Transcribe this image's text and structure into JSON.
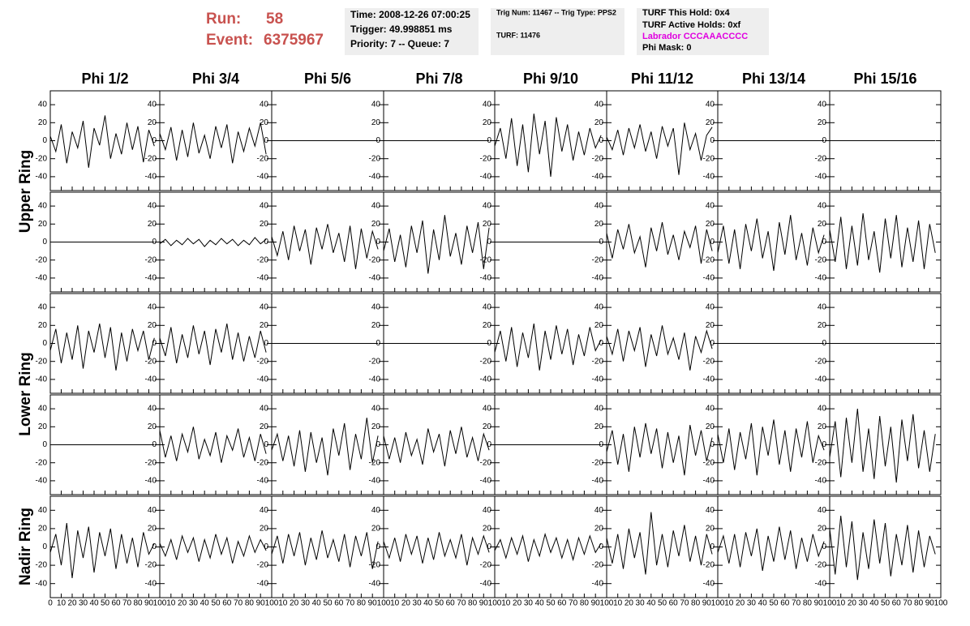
{
  "header": {
    "run_label": "Run:",
    "run": "58",
    "event_label": "Event:",
    "event": "6375967"
  },
  "info": [
    [
      "Time: 2008-12-26 07:00:25",
      "Trigger: 49.998851 ms",
      "Priority: 7 -- Queue: 7"
    ],
    [
      "Trig Num: 11467 -- Trig Type: PPS2",
      "TURF: 11476"
    ],
    [
      "TURF This Hold: 0x4",
      "TURF Active Holds: 0xf",
      "Labrador CCCAAACCCC",
      "Phi Mask: 0"
    ]
  ],
  "columns": [
    "Phi 1/2",
    "Phi 3/4",
    "Phi 5/6",
    "Phi 7/8",
    "Phi 9/10",
    "Phi 11/12",
    "Phi 13/14",
    "Phi 15/16"
  ],
  "rings": [
    "Upper Ring",
    "Lower Ring",
    "Nadir Ring"
  ],
  "plot": {
    "ylim": [
      -50,
      50
    ],
    "yticks": [
      -40,
      -20,
      0,
      20,
      40
    ],
    "xlim": [
      0,
      100
    ],
    "xticks": [
      0,
      10,
      20,
      30,
      40,
      50,
      60,
      70,
      80,
      90,
      100
    ],
    "x": [
      0,
      5,
      10,
      15,
      20,
      25,
      30,
      35,
      40,
      45,
      50,
      55,
      60,
      65,
      70,
      75,
      80,
      85,
      90,
      95
    ]
  },
  "panels": [
    [
      [
        5,
        -12,
        18,
        -25,
        10,
        -8,
        22,
        -30,
        14,
        -5,
        28,
        -20,
        8,
        -15,
        20,
        -10,
        16,
        -24,
        12,
        -6
      ],
      [
        8,
        -10,
        15,
        -22,
        12,
        -18,
        20,
        -14,
        6,
        -20,
        16,
        -8,
        18,
        -25,
        10,
        -12,
        14,
        -6,
        20,
        -15
      ],
      [
        0,
        0,
        0,
        0,
        0,
        0,
        0,
        0,
        0,
        0,
        0,
        0,
        0,
        0,
        0,
        0,
        0,
        0,
        0,
        0
      ],
      [
        0,
        0,
        0,
        0,
        0,
        0,
        0,
        0,
        0,
        0,
        0,
        0,
        0,
        0,
        0,
        0,
        0,
        0,
        0,
        0
      ],
      [
        -6,
        14,
        -20,
        25,
        -28,
        18,
        -35,
        30,
        -15,
        22,
        -40,
        26,
        -12,
        18,
        -22,
        10,
        -16,
        14,
        -8,
        6
      ],
      [
        4,
        -10,
        12,
        -16,
        14,
        -8,
        18,
        -12,
        10,
        -20,
        16,
        -6,
        14,
        -38,
        20,
        -10,
        8,
        -22,
        6,
        15
      ],
      [
        0,
        0,
        0,
        0,
        0,
        0,
        0,
        0,
        0,
        0,
        0,
        0,
        0,
        0,
        0,
        0,
        0,
        0,
        0,
        0
      ],
      [
        0,
        0,
        0,
        0,
        0,
        0,
        0,
        0,
        0,
        0,
        0,
        0,
        0,
        0,
        0,
        0,
        0,
        0,
        0,
        0
      ]
    ],
    [
      [
        0,
        0,
        0,
        0,
        0,
        0,
        0,
        0,
        0,
        0,
        0,
        0,
        0,
        0,
        0,
        0,
        0,
        0,
        0,
        0
      ],
      [
        -2,
        3,
        -4,
        2,
        -3,
        4,
        -2,
        3,
        -5,
        2,
        -3,
        4,
        -2,
        3,
        -4,
        2,
        -3,
        5,
        -2,
        3
      ],
      [
        6,
        -15,
        12,
        -20,
        18,
        -10,
        14,
        -25,
        16,
        -8,
        20,
        -12,
        10,
        -22,
        18,
        -30,
        15,
        -18,
        12,
        -8
      ],
      [
        -10,
        15,
        -22,
        8,
        -28,
        18,
        -12,
        24,
        -35,
        14,
        -20,
        30,
        -16,
        10,
        -25,
        18,
        -12,
        22,
        -30,
        16
      ],
      [
        0,
        0,
        0,
        0,
        0,
        0,
        0,
        0,
        0,
        0,
        0,
        0,
        0,
        0,
        0,
        0,
        0,
        0,
        0,
        0
      ],
      [
        10,
        -18,
        14,
        -8,
        20,
        -12,
        6,
        -28,
        16,
        -10,
        22,
        -14,
        8,
        -20,
        12,
        -6,
        18,
        -24,
        14,
        -10
      ],
      [
        -12,
        18,
        -24,
        14,
        -30,
        20,
        -10,
        26,
        -18,
        12,
        -32,
        22,
        -14,
        30,
        -20,
        10,
        -26,
        16,
        -12,
        8
      ],
      [
        14,
        -22,
        28,
        -30,
        18,
        -26,
        32,
        -20,
        12,
        -34,
        26,
        -18,
        30,
        -28,
        16,
        -22,
        24,
        -30,
        20,
        -12
      ]
    ],
    [
      [
        -8,
        16,
        -22,
        12,
        -18,
        20,
        -28,
        14,
        -10,
        22,
        -16,
        18,
        -30,
        12,
        -20,
        16,
        -8,
        14,
        -18,
        6
      ],
      [
        6,
        -14,
        18,
        -22,
        10,
        -16,
        20,
        -12,
        14,
        -24,
        16,
        -10,
        22,
        -18,
        12,
        -20,
        8,
        -16,
        14,
        -10
      ],
      [
        0,
        0,
        0,
        0,
        0,
        0,
        0,
        0,
        0,
        0,
        0,
        0,
        0,
        0,
        0,
        0,
        0,
        0,
        0,
        0
      ],
      [
        0,
        0,
        0,
        0,
        0,
        0,
        0,
        0,
        0,
        0,
        0,
        0,
        0,
        0,
        0,
        0,
        0,
        0,
        0,
        0
      ],
      [
        -10,
        14,
        -20,
        18,
        -26,
        12,
        -16,
        22,
        -30,
        14,
        -18,
        20,
        -12,
        16,
        -24,
        10,
        -14,
        18,
        -8,
        4
      ],
      [
        8,
        -12,
        16,
        -20,
        14,
        -8,
        18,
        -26,
        10,
        -14,
        20,
        -12,
        6,
        -18,
        12,
        -30,
        8,
        -10,
        14,
        -6
      ],
      [
        0,
        0,
        0,
        0,
        0,
        0,
        0,
        0,
        0,
        0,
        0,
        0,
        0,
        0,
        0,
        0,
        0,
        0,
        0,
        0
      ],
      [
        0,
        0,
        0,
        0,
        0,
        0,
        0,
        0,
        0,
        0,
        0,
        0,
        0,
        0,
        0,
        0,
        0,
        0,
        0,
        0
      ]
    ],
    [
      [
        0,
        0,
        0,
        0,
        0,
        0,
        0,
        0,
        0,
        0,
        0,
        0,
        0,
        0,
        0,
        0,
        0,
        0,
        0,
        0
      ],
      [
        16,
        -14,
        10,
        -18,
        12,
        -8,
        20,
        -16,
        6,
        -12,
        14,
        -20,
        10,
        -6,
        18,
        -14,
        8,
        -18,
        12,
        -10
      ],
      [
        -6,
        12,
        -18,
        10,
        -24,
        16,
        -30,
        14,
        -20,
        8,
        -34,
        18,
        -12,
        24,
        -28,
        12,
        -16,
        30,
        -20,
        10
      ],
      [
        10,
        -16,
        8,
        -20,
        14,
        -12,
        6,
        -22,
        18,
        -8,
        12,
        -24,
        16,
        -10,
        20,
        -14,
        8,
        -18,
        12,
        -6
      ],
      [
        0,
        0,
        0,
        0,
        0,
        0,
        0,
        0,
        0,
        0,
        0,
        0,
        0,
        0,
        0,
        0,
        0,
        0,
        0,
        0
      ],
      [
        -8,
        16,
        -22,
        12,
        -30,
        20,
        -14,
        24,
        -10,
        18,
        -26,
        14,
        -20,
        10,
        -34,
        22,
        -12,
        16,
        -18,
        8
      ],
      [
        12,
        -20,
        18,
        -28,
        14,
        -16,
        24,
        -34,
        20,
        -12,
        28,
        -22,
        16,
        -30,
        18,
        -14,
        26,
        -20,
        10,
        -6
      ],
      [
        -14,
        26,
        -36,
        30,
        -20,
        40,
        -30,
        18,
        -38,
        32,
        -24,
        20,
        -42,
        28,
        -18,
        34,
        -26,
        16,
        -30,
        12
      ]
    ],
    [
      [
        -6,
        14,
        -20,
        26,
        -34,
        18,
        -12,
        22,
        -28,
        16,
        -10,
        20,
        -24,
        14,
        -18,
        10,
        -22,
        16,
        -8,
        4
      ],
      [
        4,
        -10,
        8,
        -14,
        12,
        -6,
        10,
        -16,
        8,
        -12,
        14,
        -8,
        10,
        -18,
        6,
        -10,
        12,
        -6,
        8,
        -4
      ],
      [
        -8,
        12,
        -18,
        14,
        -10,
        16,
        -20,
        10,
        -14,
        18,
        -12,
        8,
        -16,
        14,
        -22,
        12,
        -10,
        16,
        -24,
        6
      ],
      [
        6,
        -12,
        10,
        -16,
        14,
        -8,
        12,
        -18,
        10,
        -14,
        16,
        -10,
        8,
        -12,
        14,
        -20,
        10,
        -8,
        12,
        -6
      ],
      [
        -4,
        8,
        -12,
        10,
        -8,
        12,
        -16,
        8,
        -10,
        14,
        -6,
        10,
        -12,
        8,
        -14,
        10,
        -8,
        12,
        -6,
        4
      ],
      [
        10,
        -18,
        14,
        -24,
        20,
        -12,
        16,
        -30,
        38,
        -20,
        14,
        -22,
        18,
        -10,
        24,
        -16,
        12,
        -20,
        14,
        -8
      ],
      [
        -6,
        12,
        -18,
        14,
        -22,
        16,
        -10,
        20,
        -26,
        12,
        -16,
        22,
        -14,
        18,
        -24,
        10,
        -16,
        14,
        -10,
        6
      ],
      [
        20,
        -30,
        34,
        -22,
        28,
        -36,
        16,
        -24,
        30,
        -18,
        26,
        -32,
        14,
        -20,
        24,
        -28,
        18,
        -22,
        12,
        -8
      ]
    ]
  ]
}
